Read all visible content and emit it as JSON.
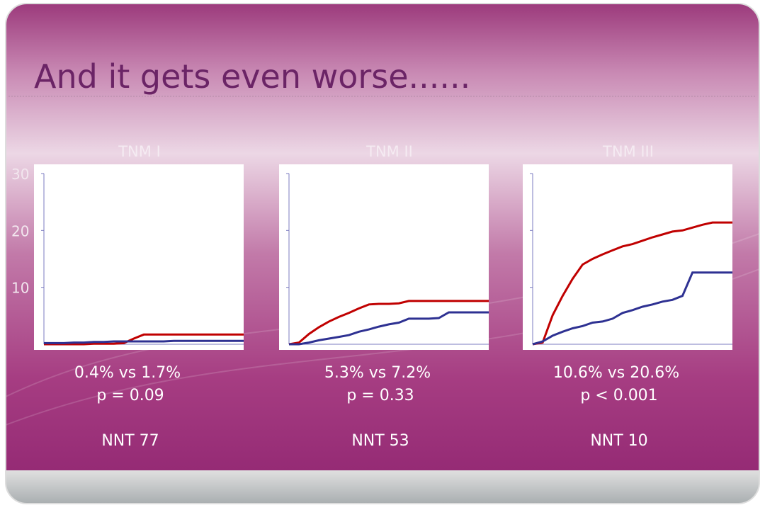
{
  "slide": {
    "title": "And it gets even worse......"
  },
  "chart_data": [
    {
      "type": "line",
      "title": "TNM I",
      "xlim": [
        0,
        10
      ],
      "ylim": [
        0,
        30
      ],
      "yticks": [
        10,
        20,
        30
      ],
      "x": [
        0,
        0.5,
        1,
        1.5,
        2,
        2.5,
        3,
        3.5,
        4,
        4.5,
        5,
        5.5,
        6,
        6.5,
        7,
        7.5,
        8,
        8.5,
        9,
        9.5,
        10
      ],
      "series": [
        {
          "color": "#c00000",
          "values": [
            0,
            0,
            0,
            0,
            0,
            0.1,
            0.1,
            0.1,
            0.2,
            1.0,
            1.7,
            1.7,
            1.7,
            1.7,
            1.7,
            1.7,
            1.7,
            1.7,
            1.7,
            1.7,
            1.7
          ]
        },
        {
          "color": "#2e3192",
          "values": [
            0.2,
            0.2,
            0.2,
            0.3,
            0.3,
            0.4,
            0.4,
            0.5,
            0.5,
            0.5,
            0.5,
            0.5,
            0.5,
            0.6,
            0.6,
            0.6,
            0.6,
            0.6,
            0.6,
            0.6,
            0.6
          ]
        }
      ],
      "annotations": [
        "0.4% vs 1.7%",
        "p = 0.09",
        "NNT 77"
      ]
    },
    {
      "type": "line",
      "title": "TNM II",
      "xlim": [
        0,
        10
      ],
      "ylim": [
        0,
        30
      ],
      "x": [
        0,
        0.5,
        1,
        1.5,
        2,
        2.5,
        3,
        3.5,
        4,
        4.5,
        5,
        5.5,
        6,
        6.5,
        7,
        7.5,
        8,
        8.5,
        9,
        9.5,
        10
      ],
      "series": [
        {
          "color": "#c00000",
          "values": [
            0,
            0.3,
            1.8,
            3.0,
            4.0,
            4.8,
            5.5,
            6.3,
            7.0,
            7.1,
            7.1,
            7.2,
            7.6,
            7.6,
            7.6,
            7.6,
            7.6,
            7.6,
            7.6,
            7.6,
            7.6
          ]
        },
        {
          "color": "#2e3192",
          "values": [
            0,
            0,
            0.3,
            0.7,
            1.0,
            1.3,
            1.6,
            2.2,
            2.6,
            3.1,
            3.5,
            3.8,
            4.5,
            4.5,
            4.5,
            4.6,
            5.6,
            5.6,
            5.6,
            5.6,
            5.6
          ]
        }
      ],
      "annotations": [
        "5.3% vs 7.2%",
        "p = 0.33",
        "NNT 53"
      ]
    },
    {
      "type": "line",
      "title": "TNM III",
      "xlim": [
        0,
        10
      ],
      "ylim": [
        0,
        30
      ],
      "x": [
        0,
        0.5,
        1,
        1.5,
        2,
        2.5,
        3,
        3.5,
        4,
        4.5,
        5,
        5.5,
        6,
        6.5,
        7,
        7.5,
        8,
        8.5,
        9,
        9.5,
        10
      ],
      "series": [
        {
          "color": "#c00000",
          "values": [
            0,
            0.3,
            5.1,
            8.5,
            11.5,
            14,
            15,
            15.8,
            16.5,
            17.2,
            17.6,
            18.2,
            18.8,
            19.3,
            19.8,
            20,
            20.5,
            21,
            21.4,
            21.4,
            21.4
          ]
        },
        {
          "color": "#2e3192",
          "values": [
            0,
            0.5,
            1.5,
            2.2,
            2.8,
            3.2,
            3.8,
            4,
            4.5,
            5.5,
            6.0,
            6.6,
            7.0,
            7.5,
            7.8,
            8.5,
            12.6,
            12.6,
            12.6,
            12.6,
            12.6
          ]
        }
      ],
      "annotations": [
        "10.6% vs 20.6%",
        "p < 0.001",
        "NNT 10"
      ]
    }
  ]
}
